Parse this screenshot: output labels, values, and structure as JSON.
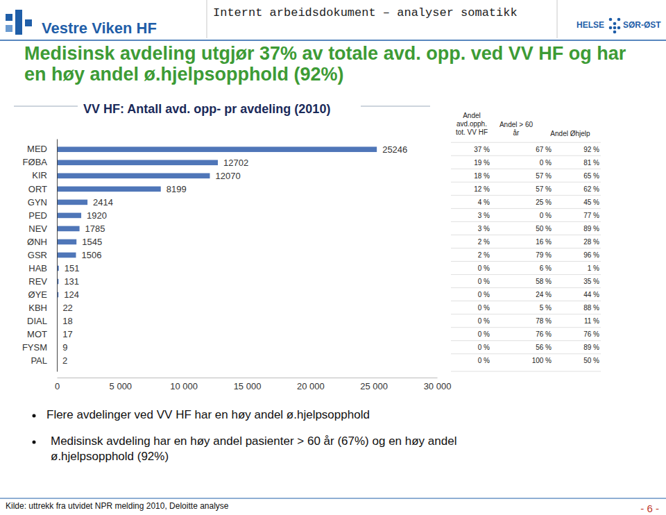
{
  "header": {
    "logo_left": "Vestre Viken HF",
    "label": "Internt arbeidsdokument – analyser somatikk",
    "logo_right_1": "HELSE",
    "logo_right_2": "SØR-ØST"
  },
  "title": "Medisinsk avdeling utgjør 37% av totale avd. opp. ved VV HF og har en høy andel ø.hjelpsopphold (92%)",
  "chart_data": {
    "type": "bar",
    "orientation": "horizontal",
    "title": "VV HF: Antall avd. opp- pr avdeling (2010)",
    "categories": [
      "MED",
      "FØBA",
      "KIR",
      "ORT",
      "GYN",
      "PED",
      "NEV",
      "ØNH",
      "GSR",
      "HAB",
      "REV",
      "ØYE",
      "KBH",
      "DIAL",
      "MOT",
      "FYSM",
      "PAL"
    ],
    "values": [
      25246,
      12702,
      12070,
      8199,
      2414,
      1920,
      1785,
      1545,
      1506,
      151,
      131,
      124,
      22,
      18,
      17,
      9,
      2
    ],
    "color": "#4f76b8",
    "xlim": [
      0,
      30000
    ],
    "xticks": [
      {
        "value": 0,
        "label": "0"
      },
      {
        "value": 5000,
        "label": "5 000"
      },
      {
        "value": 10000,
        "label": "10 000"
      },
      {
        "value": 15000,
        "label": "15 000"
      },
      {
        "value": 20000,
        "label": "20 000"
      },
      {
        "value": 25000,
        "label": "25 000"
      },
      {
        "value": 30000,
        "label": "30 000"
      }
    ],
    "grid": false,
    "data_labels": true
  },
  "table": {
    "header": [
      "Andel avd.opph. tot. VV HF",
      "Andel > 60 år",
      "Andel Øhjelp"
    ],
    "rows": [
      [
        "37 %",
        "67 %",
        "92 %"
      ],
      [
        "19 %",
        "0 %",
        "81 %"
      ],
      [
        "18 %",
        "57 %",
        "65 %"
      ],
      [
        "12 %",
        "57 %",
        "62 %"
      ],
      [
        "4 %",
        "25 %",
        "45 %"
      ],
      [
        "3 %",
        "0 %",
        "77 %"
      ],
      [
        "3 %",
        "50 %",
        "89 %"
      ],
      [
        "2 %",
        "16 %",
        "28 %"
      ],
      [
        "2 %",
        "79 %",
        "96 %"
      ],
      [
        "0 %",
        "6 %",
        "1 %"
      ],
      [
        "0 %",
        "58 %",
        "35 %"
      ],
      [
        "0 %",
        "24 %",
        "44 %"
      ],
      [
        "0 %",
        "5 %",
        "88 %"
      ],
      [
        "0 %",
        "78 %",
        "11 %"
      ],
      [
        "0 %",
        "76 %",
        "76 %"
      ],
      [
        "0 %",
        "56 %",
        "89 %"
      ],
      [
        "0 %",
        "100 %",
        "50 %"
      ]
    ]
  },
  "bullets": [
    "Flere avdelinger ved VV HF har en høy andel ø.hjelpsopphold",
    "Medisinsk avdeling har en høy andel pasienter > 60 år (67%) og en høy andel ø.hjelpsopphold (92%)"
  ],
  "footer": {
    "source": "Kilde: uttrekk fra utvidet NPR melding 2010, Deloitte analyse",
    "page": "- 6 -"
  }
}
